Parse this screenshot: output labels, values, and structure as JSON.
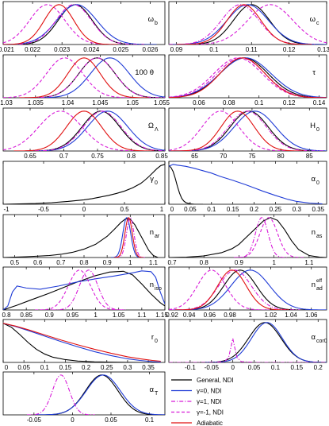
{
  "chart_data": {
    "type": "line",
    "legend": {
      "placement": "bottom-right",
      "entries": [
        {
          "label": "General, NDI",
          "color": "#000000",
          "dash": "solid"
        },
        {
          "label": "γ=0, NDI",
          "color": "#1f3bd6",
          "dash": "solid"
        },
        {
          "label": "γ=1, NDI",
          "color": "#d81ad8",
          "dash": "dashdot"
        },
        {
          "label": "γ=-1, NDI",
          "color": "#d81ad8",
          "dash": "dashed"
        },
        {
          "label": "Adiabatic",
          "color": "#e01010",
          "dash": "solid"
        }
      ]
    },
    "panels": [
      {
        "label": "ω",
        "sub": "b",
        "xlim": [
          0.021,
          0.0265
        ],
        "ticks": [
          "0.021",
          "0.022",
          "0.023",
          "0.024",
          "0.025",
          "0.026"
        ],
        "curves": [
          {
            "series": "General, NDI",
            "kind": "gauss",
            "mu": 0.02345,
            "sigma": 0.00058
          },
          {
            "series": "γ=0, NDI",
            "kind": "gauss",
            "mu": 0.0235,
            "sigma": 0.00068
          },
          {
            "series": "γ=1, NDI",
            "kind": "gauss",
            "mu": 0.0234,
            "sigma": 0.0006
          },
          {
            "series": "γ=-1, NDI",
            "kind": "gauss",
            "mu": 0.0225,
            "sigma": 0.0006
          },
          {
            "series": "Adiabatic",
            "kind": "gauss",
            "mu": 0.0229,
            "sigma": 0.0005
          }
        ]
      },
      {
        "label": "ω",
        "sub": "c",
        "xlim": [
          0.088,
          0.13
        ],
        "ticks": [
          "0.09",
          "0.1",
          "0.11",
          "0.12",
          "0.13"
        ],
        "curves": [
          {
            "series": "General, NDI",
            "kind": "gauss",
            "mu": 0.11,
            "sigma": 0.0048
          },
          {
            "series": "γ=0, NDI",
            "kind": "gauss",
            "mu": 0.109,
            "sigma": 0.0055
          },
          {
            "series": "γ=1, NDI",
            "kind": "gauss",
            "mu": 0.107,
            "sigma": 0.005
          },
          {
            "series": "γ=-1, NDI",
            "kind": "gauss",
            "mu": 0.115,
            "sigma": 0.006
          },
          {
            "series": "Adiabatic",
            "kind": "gauss",
            "mu": 0.108,
            "sigma": 0.0045
          }
        ]
      },
      {
        "label": "100 θ",
        "sub": "",
        "xlim": [
          1.03,
          1.055
        ],
        "ticks": [
          "1.03",
          "1.035",
          "1.04",
          "1.045",
          "1.05",
          "1.055"
        ],
        "curves": [
          {
            "series": "General, NDI",
            "kind": "gauss",
            "mu": 1.0445,
            "sigma": 0.0028
          },
          {
            "series": "γ=0, NDI",
            "kind": "gauss",
            "mu": 1.0465,
            "sigma": 0.003
          },
          {
            "series": "γ=1, NDI",
            "kind": "gauss",
            "mu": 1.0445,
            "sigma": 0.0028
          },
          {
            "series": "γ=-1, NDI",
            "kind": "gauss",
            "mu": 1.0395,
            "sigma": 0.0028
          },
          {
            "series": "Adiabatic",
            "kind": "gauss",
            "mu": 1.0425,
            "sigma": 0.0025
          }
        ]
      },
      {
        "label": "τ",
        "sub": "",
        "xlim": [
          0.04,
          0.145
        ],
        "ticks": [
          "0.06",
          "0.08",
          "0.1",
          "0.12",
          "0.14"
        ],
        "curves": [
          {
            "series": "General, NDI",
            "kind": "gauss",
            "mu": 0.09,
            "sigma": 0.016
          },
          {
            "series": "γ=0, NDI",
            "kind": "gauss",
            "mu": 0.091,
            "sigma": 0.017
          },
          {
            "series": "γ=1, NDI",
            "kind": "gauss",
            "mu": 0.088,
            "sigma": 0.016
          },
          {
            "series": "γ=-1, NDI",
            "kind": "gauss",
            "mu": 0.086,
            "sigma": 0.016
          },
          {
            "series": "Adiabatic",
            "kind": "gauss",
            "mu": 0.089,
            "sigma": 0.015
          }
        ]
      },
      {
        "label": "Ω",
        "sub": "Λ",
        "xlim": [
          0.61,
          0.85
        ],
        "ticks": [
          "0.65",
          "0.7",
          "0.75",
          "0.8",
          "0.85"
        ],
        "curves": [
          {
            "series": "General, NDI",
            "kind": "gauss",
            "mu": 0.755,
            "sigma": 0.028
          },
          {
            "series": "γ=0, NDI",
            "kind": "gauss",
            "mu": 0.765,
            "sigma": 0.03
          },
          {
            "series": "γ=1, NDI",
            "kind": "gauss",
            "mu": 0.757,
            "sigma": 0.028
          },
          {
            "series": "γ=-1, NDI",
            "kind": "gauss",
            "mu": 0.695,
            "sigma": 0.032
          },
          {
            "series": "Adiabatic",
            "kind": "gauss",
            "mu": 0.73,
            "sigma": 0.026
          }
        ]
      },
      {
        "label": "H",
        "sub": "0",
        "xlim": [
          60.5,
          88
        ],
        "ticks": [
          "65",
          "70",
          "75",
          "80",
          "85"
        ],
        "curves": [
          {
            "series": "General, NDI",
            "kind": "gauss",
            "mu": 74.5,
            "sigma": 3.3
          },
          {
            "series": "γ=0, NDI",
            "kind": "gauss",
            "mu": 75.5,
            "sigma": 3.6
          },
          {
            "series": "γ=1, NDI",
            "kind": "gauss",
            "mu": 74.2,
            "sigma": 3.3
          },
          {
            "series": "γ=-1, NDI",
            "kind": "gauss",
            "mu": 69.5,
            "sigma": 3.2
          },
          {
            "series": "Adiabatic",
            "kind": "gauss",
            "mu": 72.5,
            "sigma": 2.9
          }
        ]
      },
      {
        "label": "γ",
        "sub": "0",
        "xlim": [
          -1,
          1
        ],
        "ticks": [
          "-1",
          "-0.5",
          "0",
          "0.5",
          "1"
        ],
        "curves": [
          {
            "series": "General, NDI",
            "kind": "points",
            "x": [
              -1,
              -0.8,
              -0.6,
              -0.4,
              -0.2,
              0,
              0.1,
              0.2,
              0.3,
              0.4,
              0.5,
              0.6,
              0.7,
              0.75,
              0.8,
              0.85,
              0.9,
              0.95,
              1
            ],
            "y": [
              0,
              0.01,
              0.02,
              0.04,
              0.07,
              0.11,
              0.14,
              0.18,
              0.22,
              0.27,
              0.33,
              0.41,
              0.52,
              0.6,
              0.69,
              0.79,
              0.89,
              0.97,
              1
            ]
          }
        ]
      },
      {
        "label": "α",
        "sub": "0",
        "xlim": [
          0,
          0.37
        ],
        "ticks": [
          "0",
          "0.05",
          "0.1",
          "0.15",
          "0.2",
          "0.25",
          "0.3",
          "0.35"
        ],
        "curves": [
          {
            "series": "General, NDI",
            "kind": "points",
            "x": [
              0,
              0.005,
              0.01,
              0.015,
              0.02,
              0.025,
              0.03,
              0.035,
              0.04,
              0.05,
              0.06,
              0.08
            ],
            "y": [
              0.97,
              0.92,
              0.82,
              0.65,
              0.45,
              0.28,
              0.15,
              0.08,
              0.04,
              0.01,
              0,
              0
            ]
          },
          {
            "series": "γ=0, NDI",
            "kind": "points",
            "x": [
              0,
              0.01,
              0.02,
              0.04,
              0.06,
              0.08,
              0.1,
              0.12,
              0.15,
              0.18,
              0.2,
              0.22,
              0.25,
              0.28,
              0.3,
              0.33,
              0.36
            ],
            "y": [
              0.95,
              1,
              0.98,
              0.95,
              0.9,
              0.84,
              0.78,
              0.7,
              0.6,
              0.49,
              0.41,
              0.33,
              0.22,
              0.12,
              0.07,
              0.03,
              0.01
            ]
          }
        ]
      },
      {
        "label": "n",
        "sub": "ar",
        "xlim": [
          0.45,
          1.15
        ],
        "ticks": [
          "0.5",
          "0.6",
          "0.7",
          "0.8",
          "0.9",
          "1",
          "1.1"
        ],
        "curves": [
          {
            "series": "General, NDI",
            "kind": "points",
            "x": [
              0.45,
              0.55,
              0.65,
              0.7,
              0.75,
              0.8,
              0.85,
              0.9,
              0.93,
              0.96,
              0.98,
              1,
              1.02,
              1.05,
              1.08,
              1.1,
              1.12
            ],
            "y": [
              0,
              0.02,
              0.05,
              0.08,
              0.13,
              0.21,
              0.33,
              0.53,
              0.7,
              0.88,
              0.97,
              0.96,
              0.82,
              0.5,
              0.18,
              0.05,
              0
            ]
          },
          {
            "series": "γ=0, NDI",
            "kind": "gauss",
            "mu": 0.985,
            "sigma": 0.017
          },
          {
            "series": "γ=1, NDI",
            "kind": "gauss",
            "mu": 1.0,
            "sigma": 0.016
          },
          {
            "series": "Adiabatic",
            "kind": "gauss",
            "mu": 0.993,
            "sigma": 0.016
          }
        ]
      },
      {
        "label": "n",
        "sub": "as",
        "xlim": [
          0.7,
          1.15
        ],
        "ticks": [
          "0.7",
          "0.8",
          "0.9",
          "1",
          "1.1"
        ],
        "curves": [
          {
            "series": "General, NDI",
            "kind": "points",
            "x": [
              0.7,
              0.75,
              0.8,
              0.85,
              0.88,
              0.9,
              0.92,
              0.95,
              0.97,
              0.99,
              1.01,
              1.03,
              1.05,
              1.07,
              1.1,
              1.13,
              1.15
            ],
            "y": [
              0,
              0.01,
              0.04,
              0.12,
              0.22,
              0.33,
              0.5,
              0.75,
              0.92,
              1,
              0.93,
              0.7,
              0.42,
              0.2,
              0.05,
              0.01,
              0
            ]
          },
          {
            "series": "γ=1, NDI",
            "kind": "gauss",
            "mu": 0.965,
            "sigma": 0.018
          },
          {
            "series": "γ=-1, NDI",
            "kind": "gauss",
            "mu": 0.985,
            "sigma": 0.025
          }
        ]
      },
      {
        "label": "n",
        "sub": "iso",
        "xlim": [
          0.8,
          1.15
        ],
        "ticks": [
          "0.8",
          "0.85",
          "0.9",
          "0.95",
          "1",
          "1.05",
          "1.1",
          "1.15"
        ],
        "curves": [
          {
            "series": "General, NDI",
            "kind": "points",
            "x": [
              0.8,
              0.83,
              0.86,
              0.9,
              0.93,
              0.96,
              1,
              1.03,
              1.06,
              1.08,
              1.1,
              1.12,
              1.14,
              1.15
            ],
            "y": [
              0,
              0.12,
              0.25,
              0.42,
              0.56,
              0.7,
              0.86,
              0.95,
              0.97,
              0.88,
              0.65,
              0.4,
              0.18,
              0.1
            ]
          },
          {
            "series": "γ=0, NDI",
            "kind": "points",
            "x": [
              0.8,
              0.81,
              0.82,
              0.83,
              0.85,
              0.88,
              0.92,
              0.96,
              1,
              1.04,
              1.08,
              1.1,
              1.12,
              1.13,
              1.14,
              1.15
            ],
            "y": [
              0,
              0.1,
              0.45,
              0.6,
              0.55,
              0.52,
              0.6,
              0.7,
              0.78,
              0.85,
              0.93,
              0.98,
              0.96,
              0.82,
              0.45,
              0.15
            ]
          },
          {
            "series": "γ=1, NDI",
            "kind": "gauss",
            "mu": 0.985,
            "sigma": 0.02
          },
          {
            "series": "γ=-1, NDI",
            "kind": "gauss",
            "mu": 0.965,
            "sigma": 0.024
          }
        ]
      },
      {
        "label": "n",
        "sub": "ad",
        "sup": "eff",
        "xlim": [
          0.92,
          1.075
        ],
        "ticks": [
          "0.92",
          "0.94",
          "0.96",
          "0.98",
          "1",
          "1.02",
          "1.04",
          "1.06"
        ],
        "curves": [
          {
            "series": "General, NDI",
            "kind": "gauss",
            "mu": 0.99,
            "sigma": 0.016
          },
          {
            "series": "γ=0, NDI",
            "kind": "gauss",
            "mu": 1.0,
            "sigma": 0.019
          },
          {
            "series": "γ=1, NDI",
            "kind": "gauss",
            "mu": 0.985,
            "sigma": 0.016
          },
          {
            "series": "γ=-1, NDI",
            "kind": "gauss",
            "mu": 0.962,
            "sigma": 0.014
          },
          {
            "series": "Adiabatic",
            "kind": "gauss",
            "mu": 0.982,
            "sigma": 0.014
          }
        ]
      },
      {
        "label": "r",
        "sub": "0",
        "xlim": [
          0,
          0.39
        ],
        "ticks": [
          "0",
          "0.05",
          "0.1",
          "0.15",
          "0.2",
          "0.25",
          "0.3",
          "0.35"
        ],
        "curves": [
          {
            "series": "General, NDI",
            "kind": "points",
            "x": [
              0,
              0.02,
              0.04,
              0.06,
              0.08,
              0.1,
              0.12,
              0.15,
              0.18,
              0.22,
              0.26,
              0.3,
              0.34,
              0.38
            ],
            "y": [
              0.98,
              0.88,
              0.7,
              0.5,
              0.33,
              0.21,
              0.13,
              0.07,
              0.035,
              0.015,
              0.006,
              0.002,
              0,
              0
            ]
          },
          {
            "series": "γ=0, NDI",
            "kind": "points",
            "x": [
              0,
              0.03,
              0.06,
              0.1,
              0.14,
              0.18,
              0.22,
              0.26,
              0.3,
              0.33,
              0.36,
              0.38
            ],
            "y": [
              0.98,
              0.9,
              0.8,
              0.66,
              0.52,
              0.39,
              0.27,
              0.17,
              0.09,
              0.05,
              0.02,
              0.01
            ]
          },
          {
            "series": "Adiabatic",
            "kind": "points",
            "x": [
              0,
              0.03,
              0.06,
              0.1,
              0.14,
              0.18,
              0.22,
              0.26,
              0.3,
              0.33,
              0.36,
              0.38
            ],
            "y": [
              0.98,
              0.91,
              0.82,
              0.69,
              0.56,
              0.44,
              0.33,
              0.23,
              0.14,
              0.09,
              0.05,
              0.03
            ]
          }
        ]
      },
      {
        "label": "α",
        "sub": "cor0",
        "xlim": [
          -0.15,
          0.22
        ],
        "ticks": [
          "-0.1",
          "-0.05",
          "0",
          "0.05",
          "0.1",
          "0.15",
          "0.2"
        ],
        "curves": [
          {
            "series": "General, NDI",
            "kind": "gauss",
            "mu": 0.075,
            "sigma": 0.038
          },
          {
            "series": "γ=0, NDI",
            "kind": "gauss",
            "mu": 0.08,
            "sigma": 0.036
          },
          {
            "series": "γ=1, NDI",
            "kind": "points",
            "x": [
              -0.15,
              -0.05,
              -0.02,
              -0.01,
              -0.005,
              0,
              0.005,
              0.01,
              0.02,
              0.05,
              0.22
            ],
            "y": [
              0,
              0,
              0.02,
              0.12,
              0.35,
              0.6,
              0.35,
              0.12,
              0.02,
              0,
              0
            ]
          }
        ]
      },
      {
        "label": "α",
        "sub": "T",
        "xlim": [
          -0.09,
          0.12
        ],
        "ticks": [
          "-0.05",
          "0",
          "0.05",
          "0.1"
        ],
        "curves": [
          {
            "series": "General, NDI",
            "kind": "gauss",
            "mu": 0.038,
            "sigma": 0.021
          },
          {
            "series": "γ=0, NDI",
            "kind": "gauss",
            "mu": 0.04,
            "sigma": 0.022
          },
          {
            "series": "γ=1, NDI",
            "kind": "gauss",
            "mu": -0.015,
            "sigma": 0.011
          }
        ]
      }
    ]
  }
}
